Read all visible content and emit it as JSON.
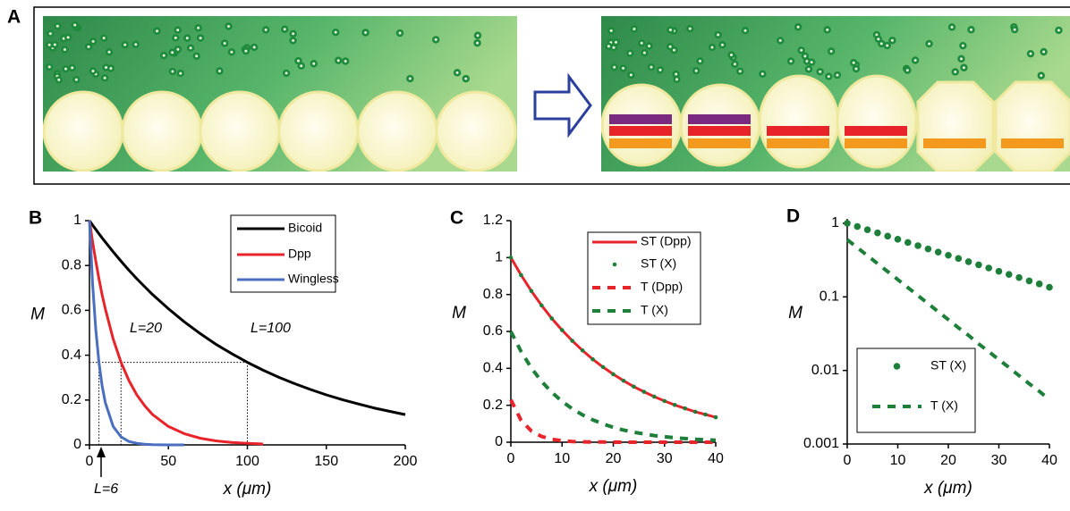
{
  "panel_a": {
    "label": "A"
  },
  "chart_data": [
    {
      "type": "line",
      "label": "B",
      "xlabel": "x (μm)",
      "ylabel": "M",
      "x": [
        0,
        2,
        4,
        6,
        8,
        10,
        15,
        20,
        25,
        30,
        35,
        40,
        50,
        60,
        70,
        80,
        90,
        100,
        110,
        120,
        130,
        140,
        150,
        160,
        170,
        180,
        190,
        200
      ],
      "xlim": [
        0,
        200
      ],
      "xticks": [
        0,
        50,
        100,
        150,
        200
      ],
      "ylim": [
        0,
        1
      ],
      "yticks": [
        0,
        0.2,
        0.4,
        0.6,
        0.8,
        1
      ],
      "series": [
        {
          "name": "Bicoid",
          "color": "#000000",
          "style": "solid",
          "values": [
            1,
            0.98,
            0.961,
            0.942,
            0.923,
            0.905,
            0.861,
            0.819,
            0.779,
            0.741,
            0.705,
            0.67,
            0.607,
            0.549,
            0.497,
            0.449,
            0.407,
            0.368,
            0.333,
            0.301,
            0.273,
            0.247,
            0.223,
            0.202,
            0.183,
            0.165,
            0.15,
            0.135
          ]
        },
        {
          "name": "Dpp",
          "color": "#e8232a",
          "style": "solid",
          "values": [
            1,
            0.905,
            0.819,
            0.741,
            0.67,
            0.607,
            0.472,
            0.368,
            0.287,
            0.223,
            0.174,
            0.135,
            0.082,
            0.05,
            0.03,
            0.018,
            0.011,
            0.007,
            0.004,
            null,
            null,
            null,
            null,
            null,
            null,
            null,
            null,
            null
          ]
        },
        {
          "name": "Wingless",
          "color": "#4a6fc0",
          "style": "solid",
          "values": [
            1,
            0.717,
            0.513,
            0.368,
            0.264,
            0.189,
            0.082,
            0.036,
            0.015,
            0.007,
            0.003,
            0.001,
            0,
            0,
            null,
            null,
            null,
            null,
            null,
            null,
            null,
            null,
            null,
            null,
            null,
            null,
            null,
            null
          ]
        }
      ],
      "reference_lines": {
        "y": 0.368,
        "x": [
          6,
          20,
          100
        ]
      },
      "annotations": [
        {
          "text": "L=20",
          "color": "#e8232a"
        },
        {
          "text": "L=100",
          "color": "#000000"
        },
        {
          "text": "L=6",
          "color": "#4a6fc0"
        }
      ]
    },
    {
      "type": "line",
      "label": "C",
      "xlabel": "x (μm)",
      "ylabel": "M",
      "x": [
        0,
        2,
        4,
        6,
        8,
        10,
        12,
        14,
        16,
        18,
        20,
        22,
        24,
        26,
        28,
        30,
        32,
        34,
        36,
        38,
        40
      ],
      "xlim": [
        0,
        40
      ],
      "xticks": [
        0,
        10,
        20,
        30,
        40
      ],
      "ylim": [
        0,
        1.2
      ],
      "yticks": [
        0,
        0.2,
        0.4,
        0.6,
        0.8,
        1,
        1.2
      ],
      "series": [
        {
          "name": "ST (Dpp)",
          "color": "#e8232a",
          "style": "solid",
          "values": [
            1,
            0.905,
            0.819,
            0.741,
            0.67,
            0.607,
            0.549,
            0.497,
            0.449,
            0.407,
            0.368,
            0.333,
            0.301,
            0.273,
            0.247,
            0.223,
            0.202,
            0.183,
            0.165,
            0.15,
            0.135
          ]
        },
        {
          "name": "ST (X)",
          "color": "#1e7f3a",
          "style": "dots",
          "values": [
            1,
            0.905,
            0.819,
            0.741,
            0.67,
            0.607,
            0.549,
            0.497,
            0.449,
            0.407,
            0.368,
            0.333,
            0.301,
            0.273,
            0.247,
            0.223,
            0.202,
            0.183,
            0.165,
            0.15,
            0.135
          ]
        },
        {
          "name": "T (Dpp)",
          "color": "#e8232a",
          "style": "dashed",
          "values": [
            0.23,
            0.118,
            0.061,
            0.031,
            0.016,
            0.008,
            0.004,
            0.002,
            0.001,
            0.001,
            0,
            0,
            0,
            0,
            0,
            0,
            0,
            0,
            0,
            0,
            0
          ]
        },
        {
          "name": "T (X)",
          "color": "#1e7f3a",
          "style": "dashed",
          "values": [
            0.6,
            0.491,
            0.402,
            0.329,
            0.27,
            0.221,
            0.181,
            0.148,
            0.121,
            0.099,
            0.081,
            0.066,
            0.054,
            0.045,
            0.036,
            0.03,
            0.024,
            0.02,
            0.016,
            0.013,
            0.011
          ]
        }
      ]
    },
    {
      "type": "line",
      "label": "D",
      "xlabel": "x (μm)",
      "ylabel": "M",
      "log_y": true,
      "x": [
        0,
        2,
        4,
        6,
        8,
        10,
        12,
        14,
        16,
        18,
        20,
        22,
        24,
        26,
        28,
        30,
        32,
        34,
        36,
        38,
        40
      ],
      "xlim": [
        0,
        40
      ],
      "xticks": [
        0,
        10,
        20,
        30,
        40
      ],
      "ylim": [
        0.001,
        1.15
      ],
      "yticks": [
        0.001,
        0.01,
        0.1,
        1
      ],
      "series": [
        {
          "name": "ST (X)",
          "color": "#1e7f3a",
          "style": "dots",
          "values": [
            1,
            0.905,
            0.819,
            0.741,
            0.67,
            0.607,
            0.549,
            0.497,
            0.449,
            0.407,
            0.368,
            0.333,
            0.301,
            0.273,
            0.247,
            0.223,
            0.202,
            0.183,
            0.165,
            0.15,
            0.135
          ]
        },
        {
          "name": "T (X)",
          "color": "#1e7f3a",
          "style": "dashed",
          "values": [
            0.6,
            0.467,
            0.364,
            0.283,
            0.221,
            0.172,
            0.134,
            0.104,
            0.081,
            0.063,
            0.049,
            0.038,
            0.03,
            0.023,
            0.018,
            0.014,
            0.011,
            0.0085,
            0.0066,
            0.0052,
            0.004
          ]
        }
      ]
    }
  ]
}
